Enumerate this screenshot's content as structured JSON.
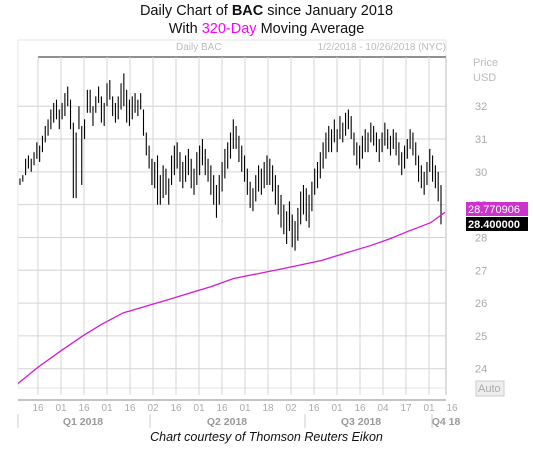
{
  "title": {
    "line1_prefix": "Daily Chart of",
    "ticker": "BAC",
    "line1_suffix": "since January 2018",
    "line2_prefix": "With",
    "ma_label": "320-Day",
    "line2_suffix": "Moving Average"
  },
  "header": {
    "symbol_label": "Daily BAC",
    "date_range": "1/2/2018 - 10/26/2018 (NYC)"
  },
  "axis": {
    "price_label": "Price",
    "currency_label": "USD",
    "auto_label": "Auto"
  },
  "badges": {
    "ma_value": "28.770906",
    "last_price": "28.400000"
  },
  "footer": {
    "credit": "Chart courtesy of Thomson Reuters Eikon"
  },
  "colors": {
    "ma_line": "#d21bd2",
    "badge_ma": "#cc33cc",
    "badge_price": "#000000",
    "bars": "#000000",
    "grid": "#d4d4d4"
  },
  "chart_data": {
    "type": "line",
    "ylim": [
      23.2,
      33.5
    ],
    "y_ticks": [
      24,
      25,
      26,
      27,
      28,
      29,
      30,
      31,
      32
    ],
    "x_tick_labels": [
      "16",
      "01",
      "16",
      "01",
      "16",
      "02",
      "16",
      "01",
      "16",
      "01",
      "18",
      "02",
      "16",
      "01",
      "16",
      "04",
      "17",
      "01",
      "16"
    ],
    "quarter_labels": [
      "Q1 2018",
      "Q2 2018",
      "Q3 2018",
      "Q4 18"
    ],
    "series": [
      {
        "name": "320-Day",
        "style": "line",
        "x": [
          "2018-01-02",
          "2018-01-16",
          "2018-02-01",
          "2018-02-16",
          "2018-03-01",
          "2018-03-16",
          "2018-04-02",
          "2018-04-16",
          "2018-05-01",
          "2018-05-16",
          "2018-06-01",
          "2018-06-18",
          "2018-07-02",
          "2018-07-16",
          "2018-08-01",
          "2018-08-16",
          "2018-09-04",
          "2018-09-17",
          "2018-10-01",
          "2018-10-16",
          "2018-10-26"
        ],
        "values": [
          23.55,
          24.05,
          24.55,
          25.0,
          25.35,
          25.7,
          25.92,
          26.1,
          26.3,
          26.5,
          26.75,
          26.9,
          27.02,
          27.15,
          27.3,
          27.5,
          27.75,
          27.95,
          28.2,
          28.45,
          28.77
        ]
      },
      {
        "name": "BAC",
        "style": "ohlc",
        "values": [
          [
            29.8,
            29.6
          ],
          [
            29.9,
            29.7
          ],
          [
            30.4,
            29.9
          ],
          [
            30.5,
            30.1
          ],
          [
            30.4,
            30.0
          ],
          [
            30.6,
            30.2
          ],
          [
            30.9,
            30.4
          ],
          [
            30.8,
            30.3
          ],
          [
            31.1,
            30.6
          ],
          [
            31.4,
            30.9
          ],
          [
            31.6,
            31.1
          ],
          [
            31.9,
            31.3
          ],
          [
            32.1,
            31.5
          ],
          [
            32.2,
            31.6
          ],
          [
            31.9,
            31.3
          ],
          [
            32.1,
            31.6
          ],
          [
            32.4,
            31.7
          ],
          [
            32.6,
            32.0
          ],
          [
            32.2,
            31.3
          ],
          [
            31.5,
            29.2
          ],
          [
            31.2,
            29.2
          ],
          [
            32.0,
            31.3
          ],
          [
            31.4,
            29.6
          ],
          [
            31.6,
            31.0
          ],
          [
            32.5,
            31.8
          ],
          [
            32.5,
            31.8
          ],
          [
            32.0,
            31.4
          ],
          [
            32.3,
            31.8
          ],
          [
            32.6,
            32.1
          ],
          [
            32.3,
            31.5
          ],
          [
            32.1,
            31.4
          ],
          [
            32.7,
            32.0
          ],
          [
            32.8,
            32.2
          ],
          [
            32.3,
            31.7
          ],
          [
            32.1,
            31.5
          ],
          [
            32.3,
            31.6
          ],
          [
            32.7,
            31.9
          ],
          [
            33.0,
            32.0
          ],
          [
            32.5,
            31.5
          ],
          [
            32.2,
            31.4
          ],
          [
            32.3,
            31.6
          ],
          [
            32.4,
            31.8
          ],
          [
            32.2,
            31.7
          ],
          [
            32.4,
            31.9
          ],
          [
            31.9,
            31.1
          ],
          [
            31.2,
            30.5
          ],
          [
            30.8,
            30.1
          ],
          [
            30.4,
            29.6
          ],
          [
            30.3,
            29.5
          ],
          [
            30.5,
            29.0
          ],
          [
            29.9,
            29.0
          ],
          [
            30.2,
            29.2
          ],
          [
            30.1,
            29.3
          ],
          [
            29.8,
            29.0
          ],
          [
            30.5,
            29.6
          ],
          [
            30.8,
            29.9
          ],
          [
            30.9,
            30.1
          ],
          [
            30.6,
            29.7
          ],
          [
            30.3,
            29.5
          ],
          [
            30.5,
            29.7
          ],
          [
            30.7,
            29.9
          ],
          [
            30.4,
            29.5
          ],
          [
            30.1,
            29.3
          ],
          [
            30.6,
            29.6
          ],
          [
            30.8,
            29.9
          ],
          [
            31.0,
            30.2
          ],
          [
            30.7,
            29.9
          ],
          [
            30.4,
            29.7
          ],
          [
            30.2,
            29.3
          ],
          [
            29.9,
            29.0
          ],
          [
            29.6,
            28.6
          ],
          [
            29.9,
            29.0
          ],
          [
            30.3,
            29.4
          ],
          [
            30.7,
            29.8
          ],
          [
            30.9,
            30.1
          ],
          [
            31.2,
            30.4
          ],
          [
            31.6,
            30.7
          ],
          [
            31.4,
            30.7
          ],
          [
            31.1,
            30.3
          ],
          [
            30.8,
            30.0
          ],
          [
            30.5,
            29.7
          ],
          [
            30.1,
            29.3
          ],
          [
            29.7,
            28.9
          ],
          [
            29.5,
            28.8
          ],
          [
            29.9,
            29.1
          ],
          [
            30.2,
            29.4
          ],
          [
            30.1,
            29.3
          ],
          [
            30.3,
            29.5
          ],
          [
            30.5,
            29.6
          ],
          [
            30.4,
            29.6
          ],
          [
            30.2,
            29.4
          ],
          [
            29.9,
            29.0
          ],
          [
            29.6,
            28.7
          ],
          [
            29.3,
            28.3
          ],
          [
            29.0,
            28.1
          ],
          [
            28.8,
            27.8
          ],
          [
            29.1,
            28.2
          ],
          [
            28.7,
            27.7
          ],
          [
            28.5,
            27.6
          ],
          [
            28.9,
            27.9
          ],
          [
            29.4,
            28.4
          ],
          [
            29.6,
            28.7
          ],
          [
            29.5,
            28.5
          ],
          [
            29.3,
            28.3
          ],
          [
            29.7,
            28.8
          ],
          [
            30.1,
            29.3
          ],
          [
            30.3,
            29.5
          ],
          [
            30.6,
            29.8
          ],
          [
            30.9,
            30.1
          ],
          [
            31.2,
            30.4
          ],
          [
            31.4,
            30.6
          ],
          [
            31.3,
            30.6
          ],
          [
            31.6,
            30.9
          ],
          [
            31.3,
            30.6
          ],
          [
            31.7,
            31.0
          ],
          [
            31.5,
            30.9
          ],
          [
            31.8,
            31.1
          ],
          [
            31.9,
            31.3
          ],
          [
            31.7,
            31.0
          ],
          [
            31.2,
            30.5
          ],
          [
            30.9,
            30.2
          ],
          [
            30.8,
            30.1
          ],
          [
            31.1,
            30.4
          ],
          [
            31.3,
            30.6
          ],
          [
            31.2,
            30.6
          ],
          [
            31.5,
            30.9
          ],
          [
            31.4,
            30.8
          ],
          [
            31.2,
            30.6
          ],
          [
            31.0,
            30.3
          ],
          [
            31.2,
            30.6
          ],
          [
            31.5,
            30.8
          ],
          [
            31.3,
            30.7
          ],
          [
            31.1,
            30.5
          ],
          [
            31.3,
            30.7
          ],
          [
            31.2,
            30.5
          ],
          [
            30.9,
            30.2
          ],
          [
            30.6,
            29.9
          ],
          [
            30.8,
            30.1
          ],
          [
            31.0,
            30.4
          ],
          [
            31.3,
            30.7
          ],
          [
            31.2,
            30.5
          ],
          [
            30.9,
            30.2
          ],
          [
            30.5,
            29.7
          ],
          [
            30.2,
            29.5
          ],
          [
            30.0,
            29.3
          ],
          [
            30.3,
            29.6
          ],
          [
            30.7,
            30.0
          ],
          [
            30.5,
            29.7
          ],
          [
            30.2,
            29.5
          ],
          [
            30.0,
            29.1
          ],
          [
            29.6,
            28.4
          ]
        ]
      }
    ]
  }
}
